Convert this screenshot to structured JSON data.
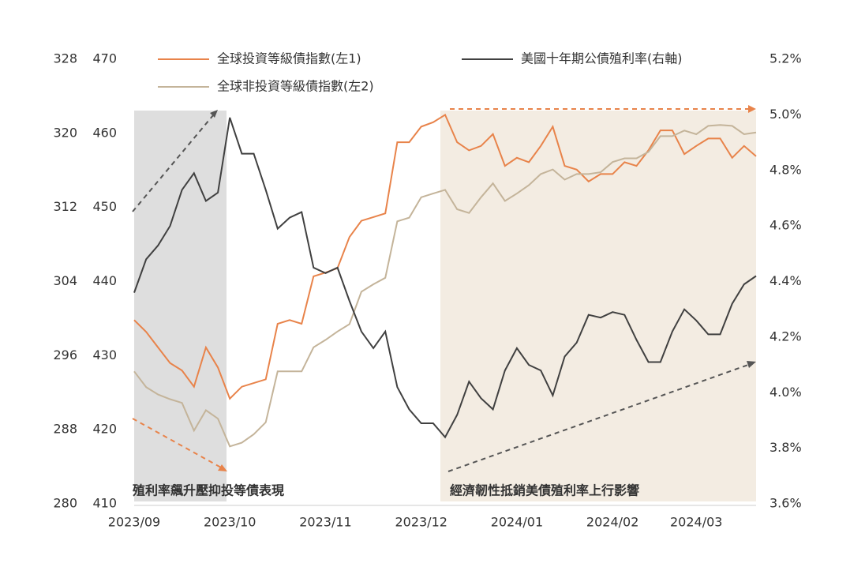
{
  "chart_data": {
    "type": "line",
    "categories": [
      "2023/09",
      null,
      null,
      null,
      null,
      null,
      null,
      null,
      "2023/10",
      null,
      null,
      null,
      null,
      null,
      null,
      null,
      "2023/11",
      null,
      null,
      null,
      null,
      null,
      null,
      null,
      "2023/12",
      null,
      null,
      null,
      null,
      null,
      null,
      null,
      "2024/01",
      null,
      null,
      null,
      null,
      null,
      null,
      null,
      "2024/02",
      null,
      null,
      null,
      null,
      null,
      null,
      "2024/03",
      null,
      null,
      null,
      null,
      null
    ],
    "series": [
      {
        "name": "全球投資等級債指數(左1)",
        "color": "#e8834a",
        "axis": "y",
        "values": [
          434.8,
          433.2,
          431.1,
          429,
          428,
          425.8,
          431.1,
          428.4,
          424.2,
          425.8,
          426.3,
          426.8,
          434.3,
          434.8,
          434.3,
          440.7,
          441.2,
          441.8,
          446,
          448.2,
          448.7,
          449.2,
          458.8,
          458.8,
          460.9,
          461.5,
          462.5,
          458.8,
          457.7,
          458.3,
          459.9,
          455.6,
          456.7,
          456.1,
          458.3,
          460.9,
          455.6,
          455.1,
          453.5,
          454.5,
          454.5,
          456.1,
          455.6,
          457.7,
          460.4,
          460.4,
          457.2,
          458.3,
          459.3,
          459.3,
          456.7,
          458.3,
          456.9
        ]
      },
      {
        "name": "全球非投資等級債指數(左2)",
        "color": "#c4b49a",
        "axis": "y3",
        "values": [
          294.3,
          292.6,
          291.8,
          291.3,
          290.9,
          287.9,
          290.1,
          289.2,
          286.2,
          286.6,
          287.5,
          288.8,
          294.3,
          294.3,
          294.3,
          296.9,
          297.7,
          298.6,
          299.4,
          302.9,
          303.7,
          304.4,
          310.5,
          310.9,
          313.1,
          313.5,
          313.9,
          311.8,
          311.4,
          313.1,
          314.6,
          312.7,
          313.5,
          314.4,
          315.6,
          316.1,
          315.0,
          315.6,
          315.6,
          315.8,
          316.9,
          317.3,
          317.3,
          318,
          319.7,
          319.7,
          320.3,
          319.9,
          320.8,
          320.9,
          320.8,
          319.9,
          320.1
        ]
      },
      {
        "name": "美國十年期公債殖利率(右軸)",
        "color": "#404040",
        "axis": "y2",
        "values": [
          4.36,
          4.48,
          4.53,
          4.6,
          4.73,
          4.79,
          4.69,
          4.72,
          4.99,
          4.86,
          4.86,
          4.73,
          4.59,
          4.63,
          4.65,
          4.45,
          4.43,
          4.45,
          4.33,
          4.22,
          4.16,
          4.22,
          4.02,
          3.94,
          3.89,
          3.89,
          3.84,
          3.92,
          4.04,
          3.98,
          3.94,
          4.08,
          4.16,
          4.1,
          4.08,
          3.99,
          4.13,
          4.18,
          4.28,
          4.27,
          4.29,
          4.28,
          4.19,
          4.11,
          4.11,
          4.22,
          4.3,
          4.26,
          4.21,
          4.21,
          4.32,
          4.39,
          4.42
        ]
      }
    ],
    "ylim": [
      410,
      470
    ],
    "yticks": [
      410,
      420,
      430,
      440,
      450,
      460,
      470
    ],
    "y3lim": [
      280,
      328
    ],
    "y3ticks": [
      280,
      288,
      296,
      304,
      312,
      320,
      328
    ],
    "y2lim": [
      3.6,
      5.2
    ],
    "y2ticks": [
      {
        "value": 3.6,
        "label": "3.6%"
      },
      {
        "value": 3.8,
        "label": "3.8%"
      },
      {
        "value": 4.0,
        "label": "4.0%"
      },
      {
        "value": 4.2,
        "label": "4.2%"
      },
      {
        "value": 4.4,
        "label": "4.4%"
      },
      {
        "value": 4.6,
        "label": "4.6%"
      },
      {
        "value": 4.8,
        "label": "4.8%"
      },
      {
        "value": 5.0,
        "label": "5.0%"
      },
      {
        "value": 5.2,
        "label": "5.2%"
      }
    ],
    "annotations": [
      "殖利率飆升壓抑投等債表現",
      "經濟韌性抵銷美債殖利率上行影響"
    ]
  }
}
